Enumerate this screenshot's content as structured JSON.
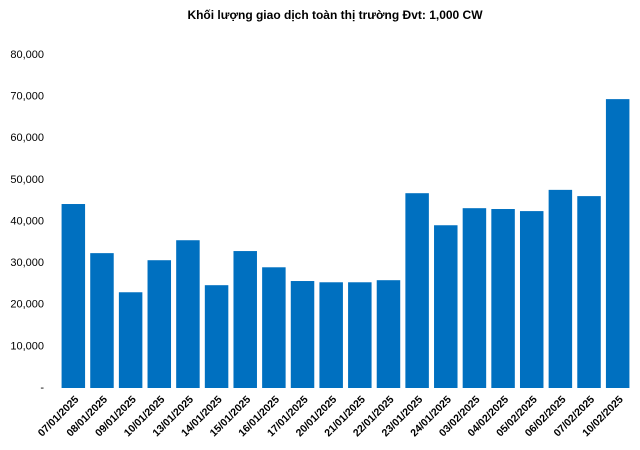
{
  "chart_data": {
    "type": "bar",
    "title": "Khối lượng giao dịch toàn thị trường Đvt: 1,000 CW",
    "categories": [
      "07/01/2025",
      "08/01/2025",
      "09/01/2025",
      "10/01/2025",
      "13/01/2025",
      "14/01/2025",
      "15/01/2025",
      "16/01/2025",
      "17/01/2025",
      "20/01/2025",
      "21/01/2025",
      "22/01/2025",
      "23/01/2025",
      "24/01/2025",
      "03/02/2025",
      "04/02/2025",
      "05/02/2025",
      "06/02/2025",
      "07/02/2025",
      "10/02/2025"
    ],
    "values": [
      44200,
      32400,
      23000,
      30700,
      35500,
      24700,
      32900,
      29000,
      25700,
      25400,
      25400,
      25900,
      46800,
      39100,
      43200,
      43000,
      42500,
      47600,
      46100,
      69400
    ],
    "color": "#0070c0",
    "ylim": [
      0,
      80000
    ],
    "yticks": [
      {
        "value": 0,
        "label": "-"
      },
      {
        "value": 10000,
        "label": "10,000"
      },
      {
        "value": 20000,
        "label": "20,000"
      },
      {
        "value": 30000,
        "label": "30,000"
      },
      {
        "value": 40000,
        "label": "40,000"
      },
      {
        "value": 50000,
        "label": "50,000"
      },
      {
        "value": 60000,
        "label": "60,000"
      },
      {
        "value": 70000,
        "label": "70,000"
      },
      {
        "value": 80000,
        "label": "80,000"
      }
    ],
    "grid": false
  }
}
